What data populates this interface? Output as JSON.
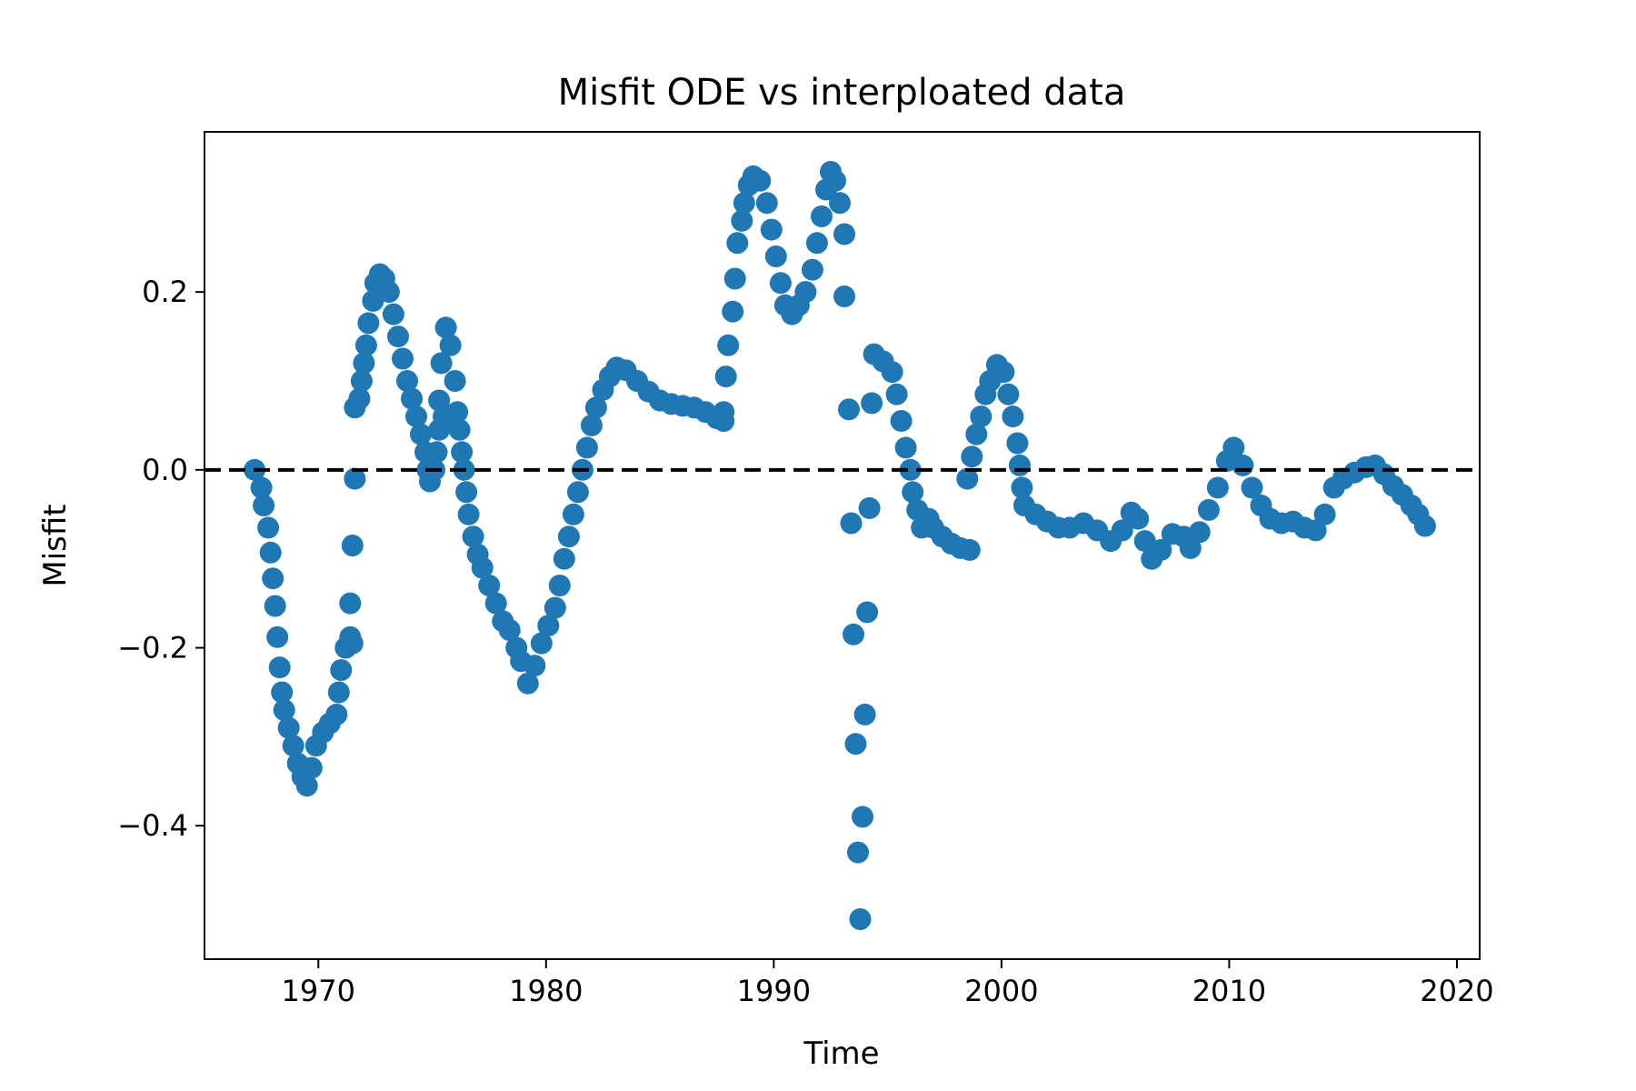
{
  "chart_data": {
    "type": "scatter",
    "title": "Misfit ODE vs interploated data",
    "xlabel": "Time",
    "ylabel": "Misfit",
    "xlim": [
      1965,
      2021
    ],
    "ylim": [
      -0.55,
      0.38
    ],
    "xticks": [
      1970,
      1980,
      1990,
      2000,
      2010,
      2020
    ],
    "yticks": [
      -0.4,
      -0.2,
      0.0,
      0.2
    ],
    "ytick_labels": [
      "−0.4",
      "−0.2",
      "0.0",
      "0.2"
    ],
    "grid": false,
    "reference_line": {
      "y": 0.0,
      "style": "dashed",
      "color": "#000000"
    },
    "marker_color": "#1f77b4",
    "points": [
      [
        1967.2,
        0.0
      ],
      [
        1967.5,
        -0.02
      ],
      [
        1967.6,
        -0.04
      ],
      [
        1967.8,
        -0.065
      ],
      [
        1967.9,
        -0.093
      ],
      [
        1968.0,
        -0.122
      ],
      [
        1968.1,
        -0.153
      ],
      [
        1968.2,
        -0.188
      ],
      [
        1968.3,
        -0.222
      ],
      [
        1968.4,
        -0.25
      ],
      [
        1968.5,
        -0.27
      ],
      [
        1968.7,
        -0.29
      ],
      [
        1968.9,
        -0.31
      ],
      [
        1969.1,
        -0.33
      ],
      [
        1969.3,
        -0.345
      ],
      [
        1969.5,
        -0.355
      ],
      [
        1969.7,
        -0.335
      ],
      [
        1969.9,
        -0.31
      ],
      [
        1970.2,
        -0.295
      ],
      [
        1970.5,
        -0.285
      ],
      [
        1970.8,
        -0.275
      ],
      [
        1970.9,
        -0.25
      ],
      [
        1971.0,
        -0.225
      ],
      [
        1971.2,
        -0.2
      ],
      [
        1971.4,
        -0.188
      ],
      [
        1971.5,
        -0.195
      ],
      [
        1971.4,
        -0.15
      ],
      [
        1971.5,
        -0.085
      ],
      [
        1971.6,
        -0.01
      ],
      [
        1971.6,
        0.07
      ],
      [
        1971.8,
        0.08
      ],
      [
        1971.9,
        0.1
      ],
      [
        1972.0,
        0.12
      ],
      [
        1972.1,
        0.14
      ],
      [
        1972.2,
        0.165
      ],
      [
        1972.4,
        0.19
      ],
      [
        1972.5,
        0.21
      ],
      [
        1972.7,
        0.22
      ],
      [
        1972.9,
        0.215
      ],
      [
        1973.1,
        0.2
      ],
      [
        1973.3,
        0.175
      ],
      [
        1973.5,
        0.15
      ],
      [
        1973.7,
        0.125
      ],
      [
        1973.9,
        0.1
      ],
      [
        1974.1,
        0.08
      ],
      [
        1974.3,
        0.06
      ],
      [
        1974.5,
        0.04
      ],
      [
        1974.7,
        0.02
      ],
      [
        1974.8,
        0.0
      ],
      [
        1974.9,
        -0.013
      ],
      [
        1975.1,
        0.0
      ],
      [
        1975.2,
        0.02
      ],
      [
        1975.3,
        0.045
      ],
      [
        1975.5,
        0.06
      ],
      [
        1975.3,
        0.078
      ],
      [
        1975.4,
        0.12
      ],
      [
        1975.6,
        0.16
      ],
      [
        1975.8,
        0.14
      ],
      [
        1976.0,
        0.1
      ],
      [
        1976.1,
        0.065
      ],
      [
        1976.2,
        0.045
      ],
      [
        1976.3,
        0.02
      ],
      [
        1976.4,
        0.0
      ],
      [
        1976.5,
        -0.025
      ],
      [
        1976.6,
        -0.05
      ],
      [
        1976.8,
        -0.075
      ],
      [
        1977.0,
        -0.095
      ],
      [
        1977.2,
        -0.11
      ],
      [
        1977.5,
        -0.13
      ],
      [
        1977.8,
        -0.15
      ],
      [
        1978.1,
        -0.17
      ],
      [
        1978.4,
        -0.18
      ],
      [
        1978.7,
        -0.2
      ],
      [
        1978.9,
        -0.215
      ],
      [
        1979.2,
        -0.24
      ],
      [
        1979.5,
        -0.22
      ],
      [
        1979.8,
        -0.195
      ],
      [
        1980.1,
        -0.175
      ],
      [
        1980.4,
        -0.155
      ],
      [
        1980.6,
        -0.13
      ],
      [
        1980.8,
        -0.1
      ],
      [
        1981.0,
        -0.075
      ],
      [
        1981.2,
        -0.05
      ],
      [
        1981.4,
        -0.025
      ],
      [
        1981.6,
        0.0
      ],
      [
        1981.8,
        0.025
      ],
      [
        1982.0,
        0.05
      ],
      [
        1982.2,
        0.07
      ],
      [
        1982.5,
        0.09
      ],
      [
        1982.8,
        0.105
      ],
      [
        1983.1,
        0.115
      ],
      [
        1983.5,
        0.112
      ],
      [
        1984.0,
        0.1
      ],
      [
        1984.5,
        0.088
      ],
      [
        1985.0,
        0.078
      ],
      [
        1985.5,
        0.074
      ],
      [
        1986.0,
        0.072
      ],
      [
        1986.5,
        0.07
      ],
      [
        1987.0,
        0.065
      ],
      [
        1987.5,
        0.058
      ],
      [
        1987.8,
        0.055
      ],
      [
        1987.8,
        0.065
      ],
      [
        1987.9,
        0.105
      ],
      [
        1988.0,
        0.14
      ],
      [
        1988.2,
        0.178
      ],
      [
        1988.3,
        0.215
      ],
      [
        1988.4,
        0.255
      ],
      [
        1988.6,
        0.28
      ],
      [
        1988.7,
        0.3
      ],
      [
        1988.9,
        0.32
      ],
      [
        1989.1,
        0.33
      ],
      [
        1989.4,
        0.325
      ],
      [
        1989.7,
        0.3
      ],
      [
        1989.9,
        0.27
      ],
      [
        1990.1,
        0.24
      ],
      [
        1990.3,
        0.21
      ],
      [
        1990.5,
        0.185
      ],
      [
        1990.8,
        0.175
      ],
      [
        1991.1,
        0.185
      ],
      [
        1991.4,
        0.2
      ],
      [
        1991.7,
        0.225
      ],
      [
        1991.9,
        0.255
      ],
      [
        1992.1,
        0.285
      ],
      [
        1992.3,
        0.315
      ],
      [
        1992.5,
        0.335
      ],
      [
        1992.7,
        0.325
      ],
      [
        1992.9,
        0.3
      ],
      [
        1993.1,
        0.265
      ],
      [
        1993.1,
        0.195
      ],
      [
        1993.3,
        0.068
      ],
      [
        1993.4,
        -0.06
      ],
      [
        1993.5,
        -0.185
      ],
      [
        1993.6,
        -0.308
      ],
      [
        1993.7,
        -0.43
      ],
      [
        1993.8,
        -0.505
      ],
      [
        1993.9,
        -0.39
      ],
      [
        1994.0,
        -0.275
      ],
      [
        1994.1,
        -0.16
      ],
      [
        1994.2,
        -0.043
      ],
      [
        1994.3,
        0.075
      ],
      [
        1994.4,
        0.13
      ],
      [
        1994.8,
        0.122
      ],
      [
        1995.2,
        0.11
      ],
      [
        1995.4,
        0.085
      ],
      [
        1995.6,
        0.055
      ],
      [
        1995.8,
        0.025
      ],
      [
        1996.0,
        0.0
      ],
      [
        1996.1,
        -0.025
      ],
      [
        1996.3,
        -0.045
      ],
      [
        1996.5,
        -0.065
      ],
      [
        1996.8,
        -0.055
      ],
      [
        1997.0,
        -0.065
      ],
      [
        1997.4,
        -0.075
      ],
      [
        1997.8,
        -0.083
      ],
      [
        1998.2,
        -0.088
      ],
      [
        1998.6,
        -0.09
      ],
      [
        1998.5,
        -0.01
      ],
      [
        1998.7,
        0.015
      ],
      [
        1998.9,
        0.04
      ],
      [
        1999.1,
        0.06
      ],
      [
        1999.3,
        0.085
      ],
      [
        1999.5,
        0.1
      ],
      [
        1999.8,
        0.118
      ],
      [
        2000.1,
        0.11
      ],
      [
        2000.3,
        0.085
      ],
      [
        2000.5,
        0.06
      ],
      [
        2000.7,
        0.03
      ],
      [
        2000.8,
        0.005
      ],
      [
        2000.9,
        -0.02
      ],
      [
        2001.0,
        -0.04
      ],
      [
        2001.5,
        -0.05
      ],
      [
        2002.0,
        -0.058
      ],
      [
        2002.5,
        -0.065
      ],
      [
        2003.0,
        -0.065
      ],
      [
        2003.6,
        -0.06
      ],
      [
        2004.2,
        -0.068
      ],
      [
        2004.8,
        -0.08
      ],
      [
        2005.3,
        -0.068
      ],
      [
        2005.7,
        -0.048
      ],
      [
        2006.0,
        -0.055
      ],
      [
        2006.3,
        -0.08
      ],
      [
        2006.6,
        -0.1
      ],
      [
        2007.0,
        -0.09
      ],
      [
        2007.5,
        -0.072
      ],
      [
        2008.0,
        -0.075
      ],
      [
        2008.3,
        -0.088
      ],
      [
        2008.7,
        -0.07
      ],
      [
        2009.1,
        -0.045
      ],
      [
        2009.5,
        -0.02
      ],
      [
        2009.9,
        0.01
      ],
      [
        2010.2,
        0.025
      ],
      [
        2010.6,
        0.005
      ],
      [
        2011.0,
        -0.02
      ],
      [
        2011.4,
        -0.04
      ],
      [
        2011.8,
        -0.055
      ],
      [
        2012.3,
        -0.06
      ],
      [
        2012.8,
        -0.058
      ],
      [
        2013.3,
        -0.065
      ],
      [
        2013.8,
        -0.068
      ],
      [
        2014.2,
        -0.05
      ],
      [
        2014.6,
        -0.02
      ],
      [
        2015.0,
        -0.01
      ],
      [
        2015.5,
        -0.003
      ],
      [
        2016.0,
        0.003
      ],
      [
        2016.4,
        0.005
      ],
      [
        2016.8,
        -0.005
      ],
      [
        2017.2,
        -0.018
      ],
      [
        2017.6,
        -0.028
      ],
      [
        2018.0,
        -0.04
      ],
      [
        2018.3,
        -0.05
      ],
      [
        2018.6,
        -0.063
      ]
    ]
  }
}
